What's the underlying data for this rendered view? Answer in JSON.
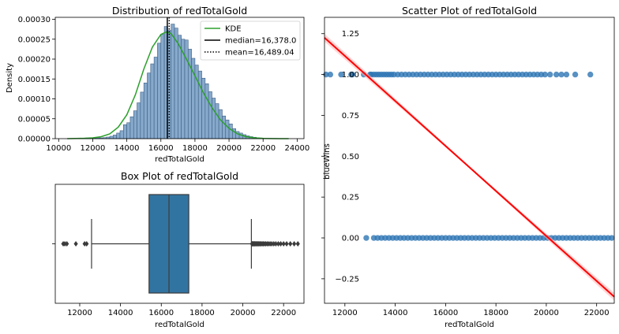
{
  "chart_data": [
    {
      "type": "histogram",
      "title": "Distribution of redTotalGold",
      "xlabel": "redTotalGold",
      "ylabel": "Density",
      "xlim": [
        9800,
        24400
      ],
      "ylim": [
        0,
        0.000305
      ],
      "x_ticks": [
        10000,
        12000,
        14000,
        16000,
        18000,
        20000,
        22000,
        24000
      ],
      "x_tick_labels": [
        "10000",
        "12000",
        "14000",
        "16000",
        "18000",
        "20000",
        "22000",
        "24000"
      ],
      "y_ticks": [
        0,
        5e-05,
        0.0001,
        0.00015,
        0.0002,
        0.00025,
        0.0003
      ],
      "y_tick_labels": [
        "0.00000",
        "0.00005",
        "0.00010",
        "0.00015",
        "0.00020",
        "0.00025",
        "0.00030"
      ],
      "bin_start": 11200,
      "bin_width": 200,
      "bin_densities": [
        5e-07,
        5e-07,
        5e-07,
        1e-06,
        1.5e-06,
        2e-06,
        2e-06,
        2.5e-06,
        4e-06,
        6e-06,
        9e-06,
        1.4e-05,
        2e-05,
        3.5e-05,
        4e-05,
        5.5e-05,
        7e-05,
        9e-05,
        0.000117,
        0.00014,
        0.000165,
        0.000188,
        0.000205,
        0.00024,
        0.000262,
        0.000282,
        0.000272,
        0.000288,
        0.000278,
        0.00026,
        0.00025,
        0.000248,
        0.000225,
        0.000202,
        0.000185,
        0.00017,
        0.000152,
        0.000138,
        0.000118,
        0.000102,
        8.8e-05,
        7.3e-05,
        5.7e-05,
        4.7e-05,
        3.7e-05,
        2.5e-05,
        1.8e-05,
        1.4e-05,
        1e-05,
        7e-06,
        5e-06,
        3.5e-06,
        2e-06,
        1e-06,
        1e-06,
        5e-07,
        5e-07,
        5e-07
      ],
      "kde_x": [
        10500,
        11000,
        11500,
        12000,
        12500,
        13000,
        13500,
        14000,
        14500,
        15000,
        15500,
        16000,
        16300,
        16600,
        17000,
        17500,
        18000,
        18500,
        19000,
        19500,
        20000,
        20500,
        21000,
        21500,
        22000,
        22500,
        23000,
        23500
      ],
      "kde_y": [
        0,
        5e-07,
        1e-06,
        2e-06,
        5e-06,
        1.2e-05,
        2.9e-05,
        6e-05,
        0.00011,
        0.000175,
        0.00023,
        0.000262,
        0.000268,
        0.000264,
        0.00024,
        0.0002,
        0.000158,
        0.000115,
        7.8e-05,
        4.7e-05,
        2.6e-05,
        1.2e-05,
        5e-06,
        2e-06,
        8e-07,
        3e-07,
        1e-07,
        0
      ],
      "median": 16378.0,
      "mean": 16489.04,
      "legend": [
        "KDE",
        "median=16,378.0",
        "mean=16,489.04"
      ],
      "legend_position": "top-right",
      "colors": {
        "bars": "#86a9cc",
        "bar_edge": "#3d5f82",
        "kde": "#2ca02c",
        "median": "#000000",
        "mean": "#000000"
      }
    },
    {
      "type": "box",
      "title": "Box Plot of redTotalGold",
      "xlabel": "redTotalGold",
      "xlim": [
        10800,
        23000
      ],
      "x_ticks": [
        12000,
        14000,
        16000,
        18000,
        20000,
        22000
      ],
      "x_tick_labels": [
        "12000",
        "14000",
        "16000",
        "18000",
        "20000",
        "22000"
      ],
      "whisker_low": 12580,
      "q1": 15400,
      "median": 16378,
      "q3": 17350,
      "whisker_high": 20420,
      "outliers": [
        11190,
        11270,
        11370,
        11810,
        12240,
        12340,
        20450,
        20480,
        20510,
        20540,
        20570,
        20600,
        20640,
        20680,
        20720,
        20760,
        20800,
        20850,
        20900,
        20950,
        21000,
        21060,
        21120,
        21190,
        21260,
        21340,
        21420,
        21520,
        21620,
        21740,
        21860,
        22000,
        22150,
        22330,
        22520,
        22700
      ],
      "colors": {
        "box": "#3274a1",
        "line": "#3b3b3b"
      }
    },
    {
      "type": "scatter",
      "title": "Scatter Plot of redTotalGold",
      "xlabel": "redTotalGold",
      "ylabel": "blueWins",
      "xlim": [
        11190,
        22700
      ],
      "ylim": [
        -0.4,
        1.35
      ],
      "x_ticks": [
        12000,
        14000,
        16000,
        18000,
        20000,
        22000
      ],
      "x_tick_labels": [
        "12000",
        "14000",
        "16000",
        "18000",
        "20000",
        "22000"
      ],
      "y_ticks": [
        -0.25,
        0,
        0.25,
        0.5,
        0.75,
        1.0,
        1.25
      ],
      "y_tick_labels": [
        "−0.25",
        "0.00",
        "0.25",
        "0.50",
        "0.75",
        "1.00",
        "1.25"
      ],
      "points_y1_x": [
        11250,
        11420,
        11850,
        12250,
        12300,
        12750,
        13000,
        13050,
        13150,
        13250,
        13350,
        13450,
        13550,
        13650,
        13750,
        13850,
        13950,
        14100,
        14250,
        14400,
        14550,
        14700,
        14850,
        15000,
        15150,
        15300,
        15450,
        15600,
        15750,
        15900,
        16050,
        16200,
        16350,
        16500,
        16650,
        16800,
        16950,
        17100,
        17250,
        17400,
        17550,
        17700,
        17850,
        18000,
        18150,
        18300,
        18450,
        18600,
        18750,
        18900,
        19050,
        19200,
        19350,
        19500,
        19650,
        19800,
        19950,
        20150,
        20400,
        20600,
        20800,
        21150,
        21750
      ],
      "points_y0_x": [
        12850,
        13150,
        13300,
        13450,
        13600,
        13750,
        13900,
        14050,
        14200,
        14350,
        14500,
        14650,
        14800,
        14950,
        15100,
        15250,
        15400,
        15550,
        15700,
        15850,
        16000,
        16150,
        16300,
        16450,
        16600,
        16750,
        16900,
        17050,
        17200,
        17350,
        17500,
        17650,
        17800,
        17950,
        18100,
        18250,
        18400,
        18550,
        18700,
        18850,
        19000,
        19150,
        19300,
        19450,
        19600,
        19750,
        19900,
        20050,
        20200,
        20350,
        20500,
        20650,
        20800,
        20950,
        21100,
        21250,
        21400,
        21550,
        21700,
        21850,
        22000,
        22150,
        22300,
        22450,
        22600
      ],
      "regression": {
        "x": [
          11190,
          22700
        ],
        "y": [
          1.225,
          -0.36
        ]
      },
      "colors": {
        "points": "#2e76b4",
        "regression": "#ff0000",
        "ci": "#ffb0b0"
      }
    }
  ]
}
